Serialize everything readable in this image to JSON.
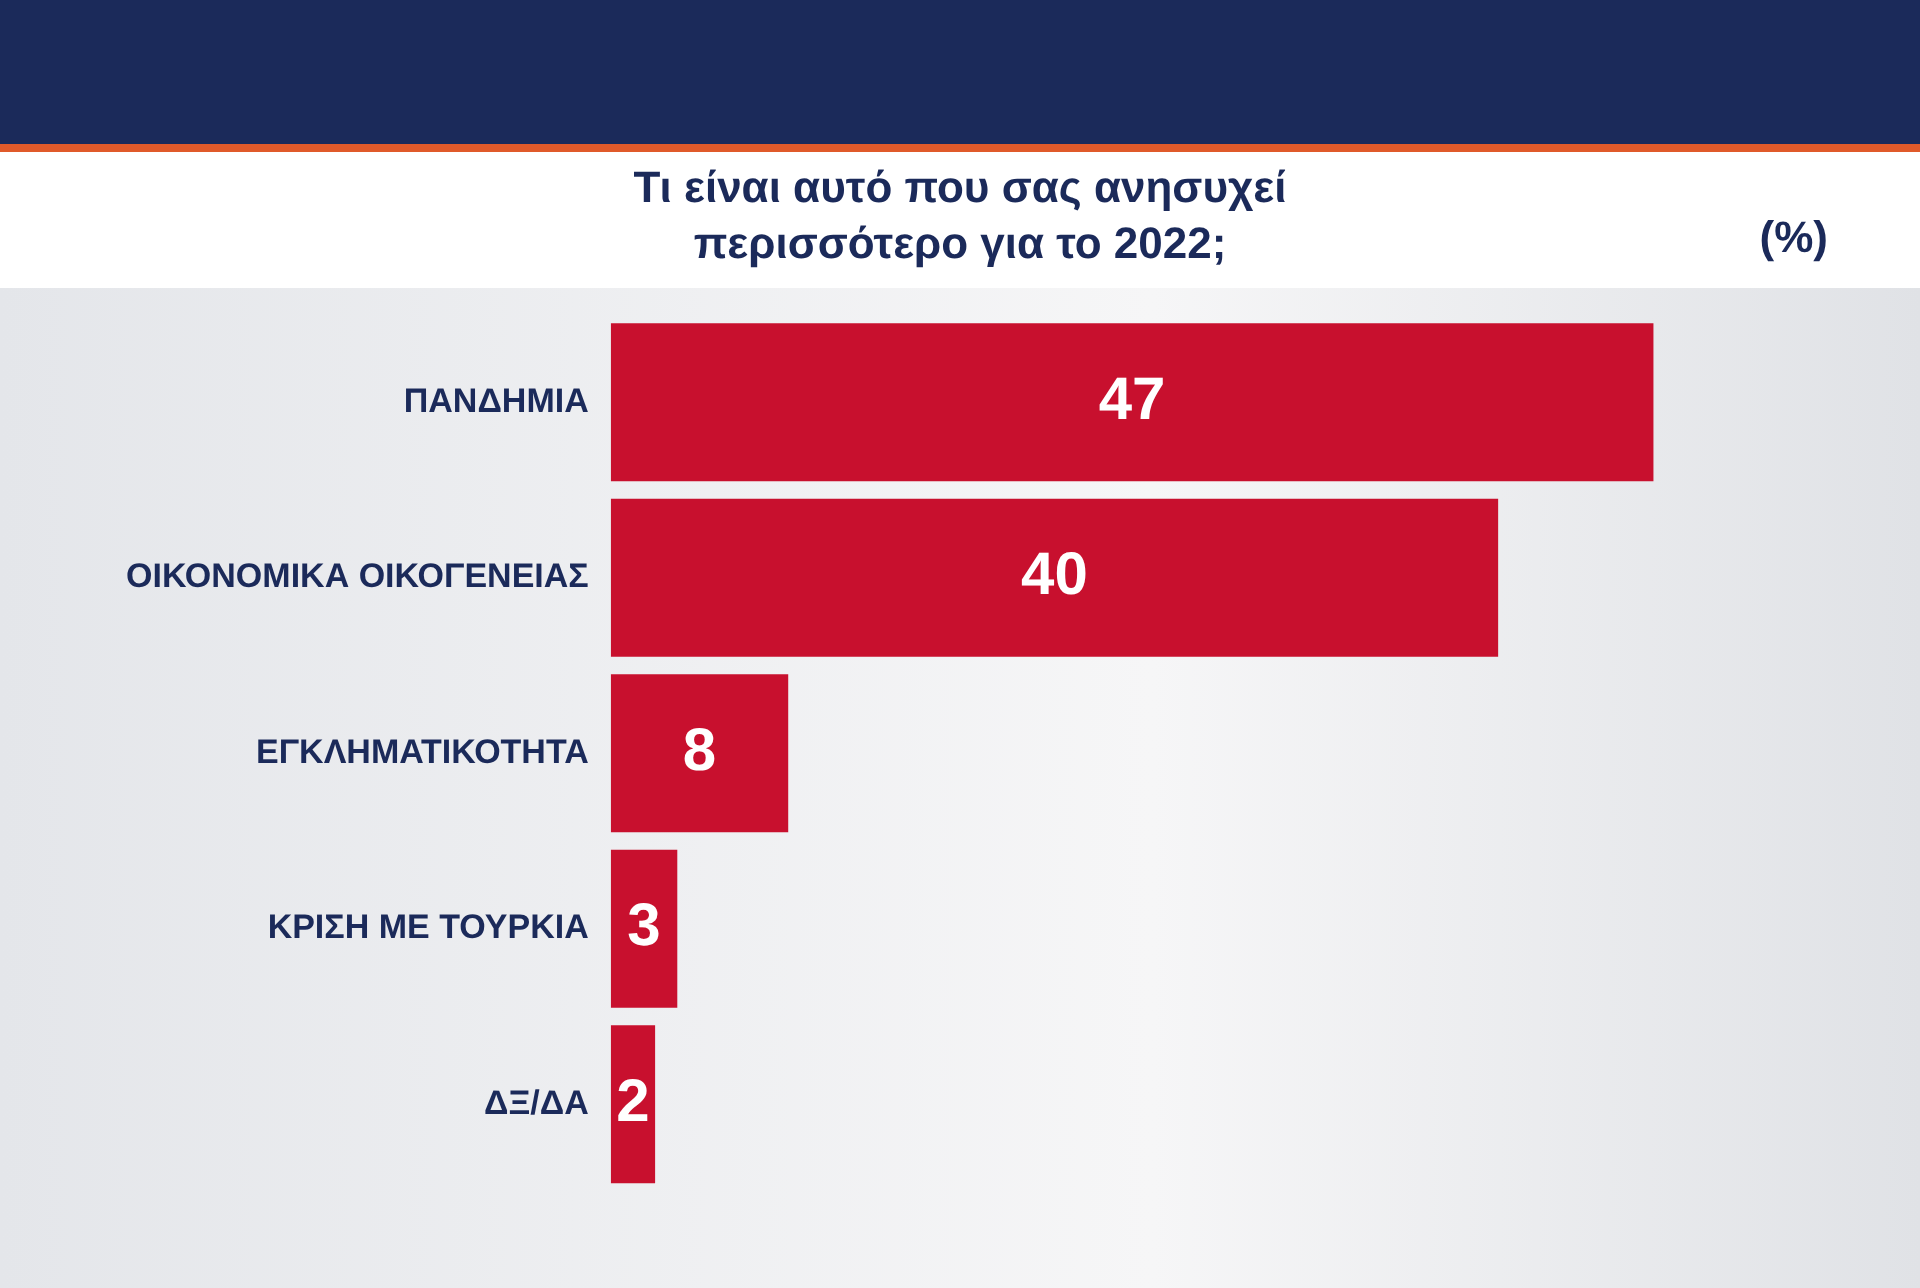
{
  "chart_data": {
    "type": "bar",
    "orientation": "horizontal",
    "title": "Τι είναι αυτό που σας ανησυχεί\nπερισσότερο για το 2022;",
    "annotations": [
      "(%)"
    ],
    "categories": [
      "ΠΑΝΔΗΜΙΑ",
      "ΟΙΚΟΝΟΜΙΚΑ ΟΙΚΟΓΕΝΕΙΑΣ",
      "ΕΓΚΛΗΜΑΤΙΚΟΤΗΤΑ",
      "ΚΡΙΣΗ ΜΕ ΤΟΥΡΚΙΑ",
      "ΔΞ/ΔΑ"
    ],
    "values": [
      47,
      40,
      8,
      3,
      2
    ],
    "color": "#c8102e",
    "data_labels": true,
    "grid": false,
    "legend": false,
    "tick_labels": "y"
  }
}
